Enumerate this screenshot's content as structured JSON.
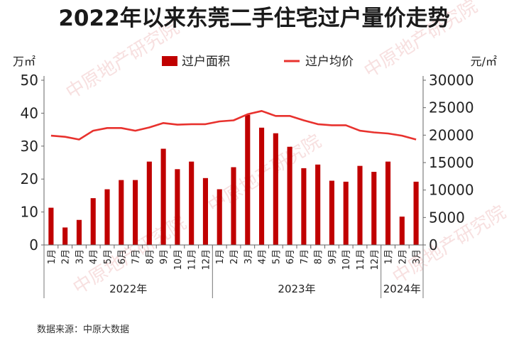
{
  "chart_data": {
    "type": "bar",
    "title": "2022年以来东莞二手住宅过户量价走势",
    "y_left_unit": "万㎡",
    "y_right_unit": "元/㎡",
    "y_left_lim": [
      0,
      50
    ],
    "y_left_ticks": [
      "0",
      "10",
      "20",
      "30",
      "40",
      "50"
    ],
    "y_right_lim": [
      0,
      30000
    ],
    "y_right_ticks": [
      "0",
      "5000",
      "10000",
      "15000",
      "20000",
      "25000",
      "30000"
    ],
    "grid": false,
    "legend_position": "top-center",
    "categories": [
      "1月",
      "2月",
      "3月",
      "4月",
      "5月",
      "6月",
      "7月",
      "8月",
      "9月",
      "10月",
      "11月",
      "12月",
      "1月",
      "2月",
      "3月",
      "4月",
      "5月",
      "6月",
      "7月",
      "8月",
      "9月",
      "10月",
      "11月",
      "12月",
      "1月",
      "2月",
      "3月"
    ],
    "year_groups": [
      {
        "label": "2022年",
        "count": 12
      },
      {
        "label": "2023年",
        "count": 12
      },
      {
        "label": "2024年",
        "count": 3
      }
    ],
    "series": [
      {
        "name": "过户面积",
        "type": "bar",
        "axis": "left",
        "color": "#c00000",
        "values": [
          11.3,
          5.3,
          7.6,
          14.2,
          16.9,
          19.7,
          19.7,
          25.3,
          29.2,
          23.0,
          25.3,
          20.3,
          16.9,
          23.6,
          39.5,
          35.6,
          33.9,
          29.8,
          23.3,
          24.4,
          19.5,
          19.2,
          24.0,
          22.2,
          25.3,
          8.6,
          19.2
        ]
      },
      {
        "name": "过户均价",
        "type": "line",
        "axis": "right",
        "color": "#e8322e",
        "values": [
          19900,
          19700,
          19200,
          20800,
          21300,
          21300,
          20800,
          21400,
          22200,
          21900,
          22000,
          22000,
          22500,
          22700,
          23800,
          24400,
          23500,
          23500,
          22700,
          22000,
          21800,
          21800,
          20800,
          20500,
          20300,
          19900,
          19200
        ]
      }
    ]
  },
  "source_note": "数据来源：中原大数据",
  "watermark": "中原地产研究院"
}
